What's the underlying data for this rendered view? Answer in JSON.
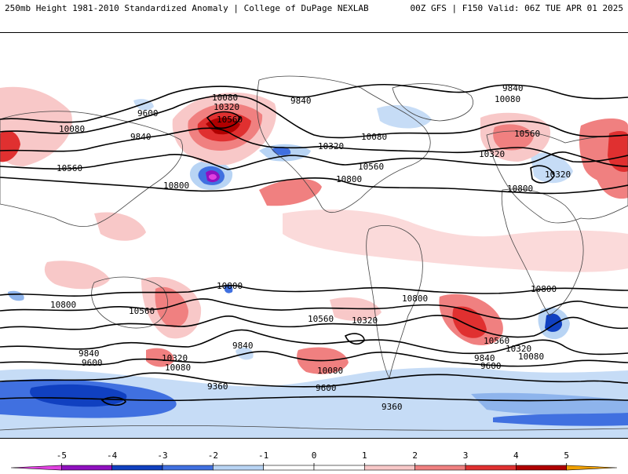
{
  "header": {
    "left_title": "250mb Height 1981-2010 Standardized Anomaly | College of DuPage NEXLAB",
    "right_title": "00Z GFS | F150 Valid: 06Z TUE APR 01 2025"
  },
  "colorbar": {
    "ticks": [
      "-5",
      "-4",
      "-3",
      "-2",
      "-1",
      "0",
      "1",
      "2",
      "3",
      "4",
      "5"
    ],
    "colors": [
      "#e040e0",
      "#9010c0",
      "#1040c0",
      "#4070e0",
      "#b8d4f4",
      "#ffffff",
      "#ffffff",
      "#f8c8c8",
      "#f08080",
      "#e03030",
      "#b00000",
      "#f0a000"
    ]
  },
  "contour_labels": {
    "c9600_a": "9600",
    "c9600_b": "9600",
    "c9600_c": "9600",
    "c9600_d": "9600",
    "c9840_a": "9840",
    "c9840_b": "9840",
    "c9840_c": "9840",
    "c9840_d": "9840",
    "c9840_e": "9840",
    "c9840_f": "9840",
    "c10080_a": "10080",
    "c10080_b": "10080",
    "c10080_c": "10080",
    "c10080_d": "10080",
    "c10080_e": "10080",
    "c10080_f": "10080",
    "c10080_g": "10080",
    "c10320_a": "10320",
    "c10320_b": "10320",
    "c10320_c": "10320",
    "c10320_d": "10320",
    "c10320_e": "10320",
    "c10320_f": "10320",
    "c10320_g": "10320",
    "c10560_a": "10560",
    "c10560_b": "10560",
    "c10560_c": "10560",
    "c10560_d": "10560",
    "c10560_e": "10560",
    "c10560_f": "10560",
    "c10560_g": "10560",
    "c10800_a": "10800",
    "c10800_b": "10800",
    "c10800_c": "10800",
    "c10800_d": "10800",
    "c10800_e": "10800",
    "c10800_f": "10800",
    "c10800_g": "10800",
    "c9360_a": "9360",
    "c9360_b": "9360"
  }
}
